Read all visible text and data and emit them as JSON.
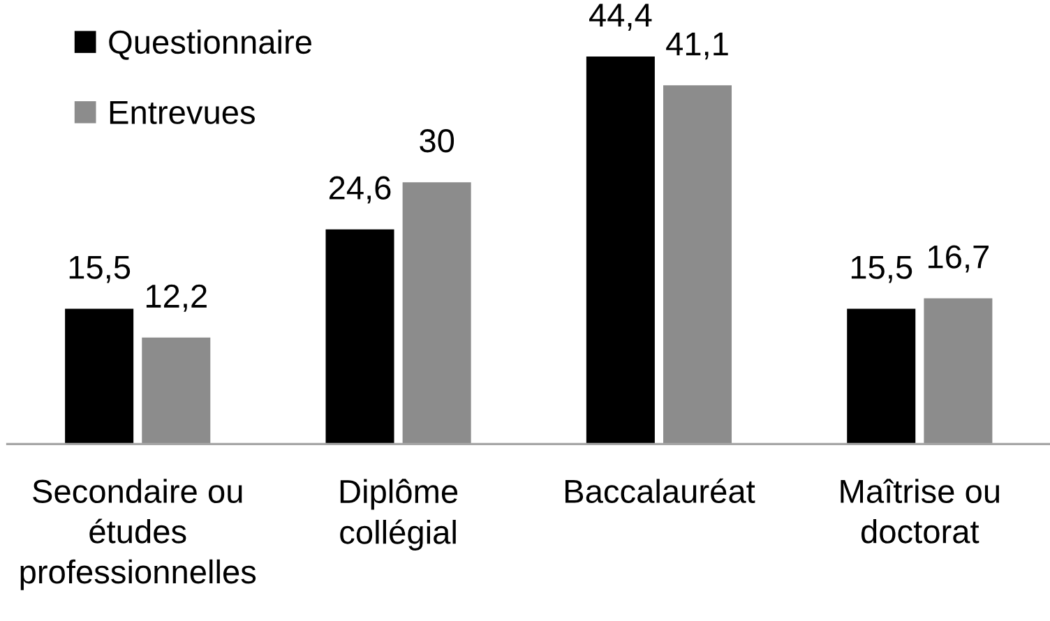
{
  "chart_data": {
    "type": "bar",
    "categories": [
      "Secondaire ou\nétudes\nprofessionnelles",
      "Diplôme\ncollégial",
      "Baccalauréat",
      "Maîtrise ou\ndoctorat"
    ],
    "series": [
      {
        "name": "Questionnaire",
        "color": "#000000",
        "values": [
          15.5,
          24.6,
          44.4,
          15.5
        ],
        "value_labels": [
          "15,5",
          "24,6",
          "44,4",
          "15,5"
        ]
      },
      {
        "name": "Entrevues",
        "color": "#8c8c8c",
        "values": [
          12.2,
          30,
          41.1,
          16.7
        ],
        "value_labels": [
          "12,2",
          "30",
          "41,1",
          "16,7"
        ]
      }
    ],
    "tick_labels": "x",
    "legend": "top left"
  }
}
